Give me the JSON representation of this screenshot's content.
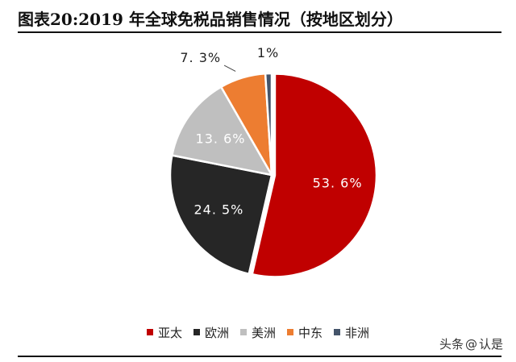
{
  "title": "图表20:2019 年全球免税品销售情况（按地区划分）",
  "watermark": {
    "source": "头条",
    "at": "@",
    "author": "认是"
  },
  "chart_data": {
    "type": "pie",
    "title": "图表20:2019 年全球免税品销售情况（按地区划分）",
    "slices": [
      {
        "name": "亚太",
        "value": 53.6,
        "label": "53. 6%",
        "color": "#c00000"
      },
      {
        "name": "欧洲",
        "value": 24.5,
        "label": "24. 5%",
        "color": "#262626"
      },
      {
        "name": "美洲",
        "value": 13.6,
        "label": "13. 6%",
        "color": "#bfbfbf"
      },
      {
        "name": "中东",
        "value": 7.3,
        "label": "7. 3%",
        "color": "#ed7d31"
      },
      {
        "name": "非洲",
        "value": 1.0,
        "label": "1%",
        "color": "#44546a"
      }
    ],
    "start_angle": "12 o'clock",
    "direction": "clockwise",
    "legend_position": "bottom"
  }
}
